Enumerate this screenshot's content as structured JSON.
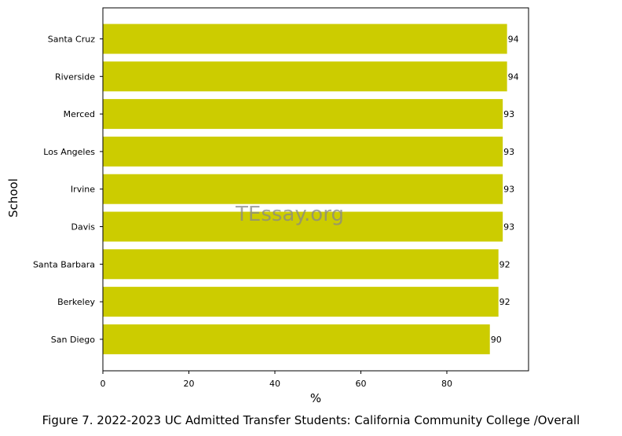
{
  "chart_data": {
    "type": "bar",
    "orientation": "horizontal",
    "categories": [
      "Santa Cruz",
      "Riverside",
      "Merced",
      "Los Angeles",
      "Irvine",
      "Davis",
      "Santa Barbara",
      "Berkeley",
      "San Diego"
    ],
    "values": [
      94,
      94,
      93,
      93,
      93,
      93,
      92,
      92,
      90
    ],
    "value_labels": [
      "94",
      "94",
      "93",
      "93",
      "93",
      "93",
      "92",
      "92",
      "90"
    ],
    "xlabel": "%",
    "ylabel": "School",
    "xlim": [
      0,
      99
    ],
    "xticks": [
      0,
      20,
      40,
      60,
      80
    ],
    "grid": false,
    "bar_color": "#cccc00",
    "watermark": "TEssay.org",
    "caption": "Figure 7. 2022-2023 UC Admitted Transfer Students: California Community College /Overall"
  }
}
